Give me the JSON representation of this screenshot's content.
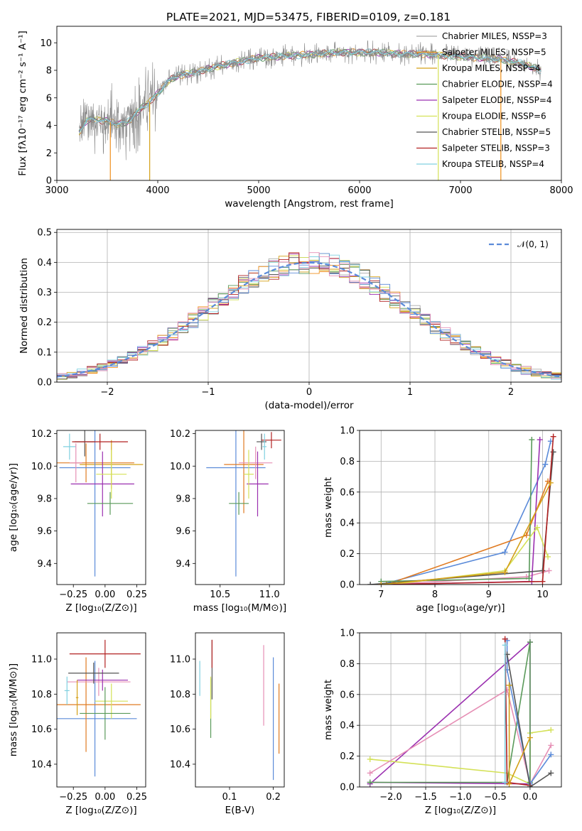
{
  "figure_title": "PLATE=2021, MJD=53475, FIBERID=0109, z=0.181",
  "colors": {
    "Chabrier MILES": "#a9a9a9",
    "Salpeter MILES": "#ef8f1c",
    "Kroupa MILES": "#d4a017",
    "Chabrier ELODIE": "#5a9a5a",
    "Salpeter ELODIE": "#9b30b0",
    "Kroupa ELODIE": "#d4e157",
    "Chabrier STELIB": "#555555",
    "Salpeter STELIB": "#b22222",
    "Kroupa STELIB": "#80d0e0",
    "blue": "#5b8bd9",
    "orange": "#e07b22",
    "pink": "#e68fb5",
    "gray": "#7f7f7f"
  },
  "chart_data": [
    {
      "id": "spectrum",
      "type": "line",
      "title": "PLATE=2021, MJD=53475, FIBERID=0109, z=0.181",
      "xlabel": "wavelength [Angstrom, rest frame]",
      "ylabel": "Flux [fλ10⁻¹⁷ erg cm⁻² s⁻¹ A⁻¹]",
      "xlim": [
        3000,
        8000
      ],
      "ylim": [
        0,
        11.2
      ],
      "xticks": [
        3000,
        4000,
        5000,
        6000,
        7000,
        8000
      ],
      "yticks": [
        0,
        2,
        4,
        6,
        8,
        10
      ],
      "grid": false,
      "legend_position": "upper right",
      "legend": [
        {
          "label": "Chabrier MILES, NSSP=3",
          "color": "#a9a9a9"
        },
        {
          "label": "Salpeter MILES, NSSP=5",
          "color": "#ef8f1c"
        },
        {
          "label": "Kroupa MILES, NSSP=4",
          "color": "#d4a017"
        },
        {
          "label": "Chabrier ELODIE, NSSP=4",
          "color": "#5a9a5a"
        },
        {
          "label": "Salpeter ELODIE, NSSP=4",
          "color": "#9b30b0"
        },
        {
          "label": "Kroupa ELODIE, NSSP=6",
          "color": "#d4e157"
        },
        {
          "label": "Chabrier STELIB, NSSP=5",
          "color": "#555555"
        },
        {
          "label": "Salpeter STELIB, NSSP=3",
          "color": "#b22222"
        },
        {
          "label": "Kroupa STELIB, NSSP=4",
          "color": "#80d0e0"
        }
      ],
      "continuum": {
        "x": [
          3220,
          3300,
          3400,
          3500,
          3600,
          3700,
          3800,
          3900,
          4000,
          4100,
          4200,
          4400,
          4600,
          4800,
          5000,
          5200,
          5400,
          5600,
          5800,
          6000,
          6200,
          6400,
          6600,
          6800,
          7000,
          7200,
          7400,
          7600,
          7800
        ],
        "y": [
          3.5,
          4.4,
          4.4,
          4.3,
          4.1,
          4.2,
          5.0,
          5.6,
          6.3,
          7.2,
          7.6,
          7.9,
          8.3,
          8.6,
          8.9,
          9.0,
          9.1,
          9.2,
          9.3,
          9.3,
          9.3,
          9.2,
          9.2,
          9.1,
          9.0,
          8.9,
          8.8,
          8.5,
          8.0
        ]
      },
      "data_spike_amplitude": 2.5,
      "model_drops": [
        {
          "x": 3530,
          "color": "#ef8f1c"
        },
        {
          "x": 3920,
          "color": "#d4a017"
        },
        {
          "x": 6780,
          "color": "#d4e157"
        },
        {
          "x": 7400,
          "color": "#ef8f1c"
        }
      ]
    },
    {
      "id": "residuals",
      "type": "histogram",
      "xlabel": "(data-model)/error",
      "ylabel": "Normed distribution",
      "xlim": [
        -2.5,
        2.5
      ],
      "ylim": [
        0,
        0.51
      ],
      "xticks": [
        -2,
        -1,
        0,
        1,
        2
      ],
      "yticks": [
        0.0,
        0.1,
        0.2,
        0.3,
        0.4,
        0.5
      ],
      "grid": true,
      "legend_position": "upper right",
      "legend": [
        {
          "label": "𝒩(0, 1)",
          "color": "#5b8bd9",
          "style": "dashed"
        }
      ],
      "bins": 50,
      "bin_range": [
        -2.5,
        2.5
      ],
      "reference_curve": "gaussian(0,1)"
    },
    {
      "id": "age-vs-Z",
      "type": "errorbar",
      "xlabel": "Z [log₁₀(Z/Z⊙)]",
      "ylabel": "age  [log₁₀(age/yr)]",
      "xlim": [
        -0.38,
        0.32
      ],
      "ylim": [
        9.27,
        10.22
      ],
      "xticks": [
        -0.25,
        0.0,
        0.25
      ],
      "xticklabels": [
        "−0.25",
        "0.00",
        "0.25"
      ],
      "yticks": [
        9.4,
        9.6,
        9.8,
        10.0,
        10.2
      ],
      "points": [
        {
          "x": 0.05,
          "y": 10.01,
          "xerr": 0.25,
          "yerr": 0.15,
          "color": "#d4a017"
        },
        {
          "x": -0.15,
          "y": 10.02,
          "xerr": 0.38,
          "yerr": 0.12,
          "color": "#e07b22"
        },
        {
          "x": -0.08,
          "y": 9.99,
          "xerr": 0.28,
          "yerr": 0.67,
          "color": "#5b8bd9"
        },
        {
          "x": -0.02,
          "y": 9.89,
          "xerr": 0.25,
          "yerr": 0.2,
          "color": "#9b30b0"
        },
        {
          "x": 0.05,
          "y": 9.95,
          "xerr": 0.12,
          "yerr": 0.15,
          "color": "#d4e157"
        },
        {
          "x": 0.04,
          "y": 9.77,
          "xerr": 0.18,
          "yerr": 0.07,
          "color": "#5a9a5a"
        },
        {
          "x": -0.16,
          "y": 10.15,
          "xerr": 0.08,
          "yerr": 0.09,
          "color": "#555555"
        },
        {
          "x": -0.04,
          "y": 10.15,
          "xerr": 0.22,
          "yerr": 0.05,
          "color": "#b22222"
        },
        {
          "x": -0.28,
          "y": 10.12,
          "xerr": 0.05,
          "yerr": 0.08,
          "color": "#80d0e0"
        },
        {
          "x": -0.23,
          "y": 10.02,
          "xerr": 0.05,
          "yerr": 0.12,
          "color": "#e68fb5"
        }
      ]
    },
    {
      "id": "age-vs-mass",
      "type": "errorbar",
      "xlabel": "mass [log₁₀(M/M⊙)]",
      "ylabel": "",
      "xlim": [
        10.25,
        11.15
      ],
      "ylim": [
        9.27,
        10.22
      ],
      "xticks": [
        10.5,
        11.0
      ],
      "xticklabels": [
        "10.5",
        "11.0"
      ],
      "yticks": [
        9.4,
        9.6,
        9.8,
        10.0,
        10.2
      ],
      "points": [
        {
          "x": 10.66,
          "y": 9.99,
          "xerr": 0.3,
          "yerr": 0.67,
          "color": "#5b8bd9"
        },
        {
          "x": 10.74,
          "y": 10.01,
          "xerr": 0.2,
          "yerr": 0.3,
          "color": "#e07b22"
        },
        {
          "x": 10.86,
          "y": 10.02,
          "xerr": 0.17,
          "yerr": 0.1,
          "color": "#e68fb5"
        },
        {
          "x": 10.88,
          "y": 9.89,
          "xerr": 0.11,
          "yerr": 0.2,
          "color": "#9b30b0"
        },
        {
          "x": 10.79,
          "y": 9.95,
          "xerr": 0.05,
          "yerr": 0.15,
          "color": "#d4e157"
        },
        {
          "x": 10.69,
          "y": 9.77,
          "xerr": 0.1,
          "yerr": 0.07,
          "color": "#5a9a5a"
        },
        {
          "x": 10.92,
          "y": 10.15,
          "xerr": 0.05,
          "yerr": 0.05,
          "color": "#555555"
        },
        {
          "x": 11.02,
          "y": 10.16,
          "xerr": 0.1,
          "yerr": 0.05,
          "color": "#b22222"
        },
        {
          "x": 10.95,
          "y": 10.12,
          "xerr": 0.02,
          "yerr": 0.08,
          "color": "#80d0e0"
        }
      ]
    },
    {
      "id": "massweight-vs-age",
      "type": "line",
      "xlabel": "age  [log₁₀(age/yr)]",
      "ylabel": "mass weight",
      "xlim": [
        6.6,
        10.35
      ],
      "ylim": [
        0,
        1.0
      ],
      "xticks": [
        7,
        8,
        9,
        10
      ],
      "yticks": [
        0.0,
        0.2,
        0.4,
        0.6,
        0.8,
        1.0
      ],
      "grid": true,
      "series": [
        {
          "color": "#5b8bd9",
          "x": [
            7.0,
            9.3,
            10.05,
            10.15
          ],
          "y": [
            0.0,
            0.21,
            0.78,
            0.93
          ]
        },
        {
          "color": "#e07b22",
          "x": [
            7.1,
            9.7,
            10.1
          ],
          "y": [
            0.0,
            0.32,
            0.67
          ]
        },
        {
          "color": "#e68fb5",
          "x": [
            7.0,
            9.7,
            10.12
          ],
          "y": [
            0.0,
            0.05,
            0.09
          ]
        },
        {
          "color": "#5a9a5a",
          "x": [
            7.0,
            9.75,
            9.8
          ],
          "y": [
            0.02,
            0.04,
            0.94
          ]
        },
        {
          "color": "#9b30b0",
          "x": [
            7.0,
            9.8,
            9.95
          ],
          "y": [
            0.0,
            0.02,
            0.94
          ]
        },
        {
          "color": "#d4e157",
          "x": [
            7.2,
            9.3,
            9.9,
            10.1
          ],
          "y": [
            0.0,
            0.09,
            0.37,
            0.18
          ]
        },
        {
          "color": "#555555",
          "x": [
            6.8,
            10.0,
            10.2
          ],
          "y": [
            0.0,
            0.09,
            0.86
          ]
        },
        {
          "color": "#b22222",
          "x": [
            7.0,
            10.0,
            10.2
          ],
          "y": [
            0.0,
            0.02,
            0.96
          ]
        },
        {
          "color": "#d4a017",
          "x": [
            7.0,
            9.3,
            10.15
          ],
          "y": [
            0.0,
            0.08,
            0.66
          ]
        }
      ]
    },
    {
      "id": "mass-vs-Z",
      "type": "errorbar",
      "xlabel": "Z [log₁₀(Z/Z⊙)]",
      "ylabel": "mass [log₁₀(M/M⊙)]",
      "xlim": [
        -0.38,
        0.32
      ],
      "ylim": [
        10.27,
        11.15
      ],
      "xticks": [
        -0.25,
        0.0,
        0.25
      ],
      "xticklabels": [
        "−0.25",
        "0.00",
        "0.25"
      ],
      "yticks": [
        10.4,
        10.6,
        10.8,
        11.0
      ],
      "points": [
        {
          "x": -0.08,
          "y": 10.66,
          "xerr": 0.33,
          "yerr": 0.33,
          "color": "#5b8bd9"
        },
        {
          "x": -0.15,
          "y": 10.74,
          "xerr": 0.43,
          "yerr": 0.27,
          "color": "#e07b22"
        },
        {
          "x": -0.05,
          "y": 10.87,
          "xerr": 0.25,
          "yerr": 0.08,
          "color": "#e68fb5"
        },
        {
          "x": -0.02,
          "y": 10.88,
          "xerr": 0.2,
          "yerr": 0.06,
          "color": "#9b30b0"
        },
        {
          "x": 0.05,
          "y": 10.76,
          "xerr": 0.13,
          "yerr": 0.1,
          "color": "#d4e157"
        },
        {
          "x": 0.0,
          "y": 10.69,
          "xerr": 0.2,
          "yerr": 0.15,
          "color": "#5a9a5a"
        },
        {
          "x": -0.09,
          "y": 10.92,
          "xerr": 0.2,
          "yerr": 0.06,
          "color": "#555555"
        },
        {
          "x": 0.0,
          "y": 11.03,
          "xerr": 0.28,
          "yerr": 0.08,
          "color": "#b22222"
        },
        {
          "x": -0.3,
          "y": 10.82,
          "xerr": 0.02,
          "yerr": 0.08,
          "color": "#80d0e0"
        },
        {
          "x": -0.22,
          "y": 10.78,
          "xerr": 0.01,
          "yerr": 0.1,
          "color": "#d4a017"
        }
      ]
    },
    {
      "id": "mass-vs-EBV",
      "type": "errorbar",
      "xlabel": "E(B-V)",
      "ylabel": "",
      "xlim": [
        0.022,
        0.225
      ],
      "ylim": [
        10.27,
        11.15
      ],
      "xticks": [
        0.1,
        0.2
      ],
      "xticklabels": [
        "0.1",
        "0.2"
      ],
      "yticks": [
        10.4,
        10.6,
        10.8,
        11.0
      ],
      "points": [
        {
          "x": 0.2,
          "y": 10.66,
          "xerr": 0,
          "yerr": 0.35,
          "color": "#5b8bd9"
        },
        {
          "x": 0.213,
          "y": 10.66,
          "xerr": 0,
          "yerr": 0.2,
          "color": "#e07b22"
        },
        {
          "x": 0.178,
          "y": 10.85,
          "xerr": 0,
          "yerr": 0.23,
          "color": "#e68fb5"
        },
        {
          "x": 0.057,
          "y": 10.72,
          "xerr": 0,
          "yerr": 0.17,
          "color": "#5a9a5a"
        },
        {
          "x": 0.057,
          "y": 10.78,
          "xerr": 0,
          "yerr": 0.12,
          "color": "#d4e157"
        },
        {
          "x": 0.06,
          "y": 10.94,
          "xerr": 0,
          "yerr": 0.17,
          "color": "#555555"
        },
        {
          "x": 0.06,
          "y": 11.03,
          "xerr": 0,
          "yerr": 0.08,
          "color": "#b22222"
        },
        {
          "x": 0.032,
          "y": 10.89,
          "xerr": 0,
          "yerr": 0.1,
          "color": "#80d0e0"
        }
      ]
    },
    {
      "id": "massweight-vs-Z",
      "type": "line",
      "xlabel": "Z [log₁₀(Z/Z⊙)]",
      "ylabel": "mass weight",
      "xlim": [
        -2.45,
        0.45
      ],
      "ylim": [
        0,
        1.0
      ],
      "xticks": [
        -2.0,
        -1.5,
        -1.0,
        -0.5,
        0.0
      ],
      "xticklabels": [
        "−2.0",
        "−1.5",
        "−1.0",
        "−0.5",
        "0.0"
      ],
      "yticks": [
        0.0,
        0.2,
        0.4,
        0.6,
        0.8,
        1.0
      ],
      "grid": true,
      "series": [
        {
          "color": "#9b30b0",
          "x": [
            -2.3,
            0.0,
            0.0,
            -2.3
          ],
          "y": [
            0.02,
            0.94,
            0.02,
            0.03
          ]
        },
        {
          "color": "#d4e157",
          "x": [
            -2.3,
            -0.33,
            0.0,
            0.0,
            0.3
          ],
          "y": [
            0.18,
            0.09,
            0.02,
            0.35,
            0.37
          ]
        },
        {
          "color": "#e68fb5",
          "x": [
            -2.3,
            -0.33,
            0.0,
            0.3
          ],
          "y": [
            0.09,
            0.63,
            0.02,
            0.27
          ]
        },
        {
          "color": "#5a9a5a",
          "x": [
            -2.3,
            -0.33,
            0.0,
            0.0
          ],
          "y": [
            0.03,
            0.03,
            0.94,
            0.03
          ]
        },
        {
          "color": "#5b8bd9",
          "x": [
            -0.33,
            -0.33,
            0.0,
            0.3
          ],
          "y": [
            0.95,
            0.76,
            0.02,
            0.21
          ]
        },
        {
          "color": "#b22222",
          "x": [
            -0.36,
            -0.33,
            0.0
          ],
          "y": [
            0.96,
            0.03,
            0.01
          ]
        },
        {
          "color": "#555555",
          "x": [
            -0.33,
            0.0,
            0.3
          ],
          "y": [
            0.86,
            0.0,
            0.09
          ]
        },
        {
          "color": "#80d0e0",
          "x": [
            -0.36,
            -0.36
          ],
          "y": [
            0.92,
            0.03
          ]
        },
        {
          "color": "#d4a017",
          "x": [
            -0.3,
            -0.3,
            0.0
          ],
          "y": [
            0.66,
            0.02,
            0.32
          ]
        }
      ]
    }
  ]
}
